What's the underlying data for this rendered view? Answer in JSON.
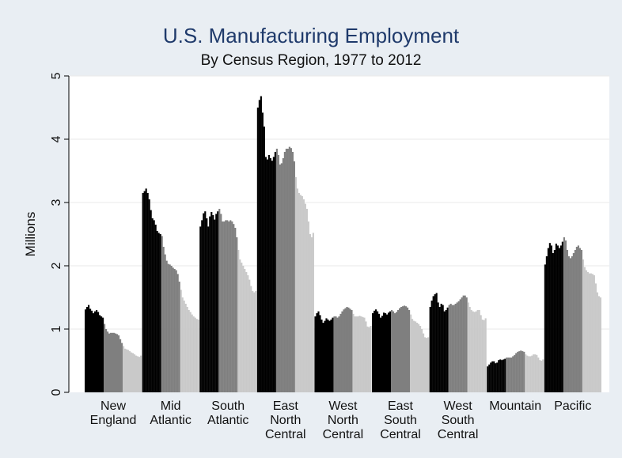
{
  "chart_data": {
    "type": "bar",
    "title": "U.S. Manufacturing Employment",
    "subtitle": "By Census Region, 1977 to 2012",
    "ylabel": "Millions",
    "ylim": [
      0,
      5
    ],
    "yticks": [
      "0",
      "1",
      "2",
      "3",
      "4",
      "5"
    ],
    "grid": true,
    "colors": [
      "#000000",
      "#7f7f7f",
      "#c9c9c9"
    ],
    "categories": [
      {
        "lines": [
          "New",
          "England"
        ]
      },
      {
        "lines": [
          "Mid",
          "Atlantic"
        ]
      },
      {
        "lines": [
          "South",
          "Atlantic"
        ]
      },
      {
        "lines": [
          "East",
          "North",
          "Central"
        ]
      },
      {
        "lines": [
          "West",
          "North",
          "Central"
        ]
      },
      {
        "lines": [
          "East",
          "South",
          "Central"
        ]
      },
      {
        "lines": [
          "West",
          "South",
          "Central"
        ]
      },
      {
        "lines": [
          "Mountain"
        ]
      },
      {
        "lines": [
          "Pacific"
        ]
      }
    ],
    "regions": [
      {
        "name": "New England",
        "values": [
          1.31,
          1.35,
          1.38,
          1.32,
          1.29,
          1.25,
          1.28,
          1.3,
          1.27,
          1.22,
          1.2,
          1.18,
          1.08,
          1.0,
          0.96,
          0.93,
          0.94,
          0.94,
          0.94,
          0.93,
          0.92,
          0.9,
          0.84,
          0.78,
          0.73,
          0.69,
          0.68,
          0.67,
          0.65,
          0.63,
          0.62,
          0.6,
          0.58,
          0.57,
          0.56,
          0.58
        ]
      },
      {
        "name": "Mid Atlantic",
        "values": [
          3.15,
          3.18,
          3.22,
          3.15,
          3.05,
          2.88,
          2.75,
          2.72,
          2.65,
          2.55,
          2.52,
          2.5,
          2.47,
          2.3,
          2.18,
          2.08,
          2.03,
          2.02,
          2.0,
          1.97,
          1.95,
          1.93,
          1.87,
          1.75,
          1.62,
          1.5,
          1.45,
          1.4,
          1.35,
          1.3,
          1.27,
          1.23,
          1.2,
          1.18,
          1.16,
          1.15
        ]
      },
      {
        "name": "South Atlantic",
        "values": [
          2.62,
          2.72,
          2.83,
          2.86,
          2.75,
          2.62,
          2.78,
          2.85,
          2.8,
          2.73,
          2.82,
          2.86,
          2.9,
          2.82,
          2.7,
          2.7,
          2.72,
          2.72,
          2.7,
          2.72,
          2.7,
          2.66,
          2.6,
          2.45,
          2.25,
          2.1,
          2.05,
          2.0,
          1.95,
          1.9,
          1.85,
          1.78,
          1.68,
          1.6,
          1.58,
          1.6
        ]
      },
      {
        "name": "East North Central",
        "values": [
          4.5,
          4.62,
          4.68,
          4.42,
          4.2,
          3.72,
          3.68,
          3.75,
          3.7,
          3.66,
          3.72,
          3.8,
          3.85,
          3.75,
          3.6,
          3.62,
          3.7,
          3.8,
          3.85,
          3.85,
          3.88,
          3.86,
          3.8,
          3.65,
          3.4,
          3.22,
          3.15,
          3.12,
          3.1,
          3.05,
          2.98,
          2.9,
          2.7,
          2.5,
          2.45,
          2.52
        ]
      },
      {
        "name": "West North Central",
        "values": [
          1.2,
          1.25,
          1.28,
          1.22,
          1.15,
          1.1,
          1.13,
          1.17,
          1.15,
          1.13,
          1.15,
          1.18,
          1.2,
          1.2,
          1.18,
          1.2,
          1.24,
          1.28,
          1.31,
          1.33,
          1.35,
          1.34,
          1.32,
          1.3,
          1.24,
          1.2,
          1.2,
          1.2,
          1.21,
          1.2,
          1.19,
          1.18,
          1.12,
          1.04,
          1.03,
          1.05
        ]
      },
      {
        "name": "East South Central",
        "values": [
          1.25,
          1.29,
          1.31,
          1.28,
          1.24,
          1.18,
          1.21,
          1.26,
          1.25,
          1.23,
          1.26,
          1.28,
          1.3,
          1.28,
          1.25,
          1.27,
          1.3,
          1.33,
          1.35,
          1.36,
          1.37,
          1.36,
          1.34,
          1.3,
          1.23,
          1.16,
          1.13,
          1.12,
          1.1,
          1.08,
          1.05,
          1.0,
          0.93,
          0.87,
          0.86,
          0.87
        ]
      },
      {
        "name": "West South Central",
        "values": [
          1.35,
          1.45,
          1.52,
          1.55,
          1.57,
          1.42,
          1.35,
          1.4,
          1.38,
          1.28,
          1.3,
          1.34,
          1.38,
          1.4,
          1.38,
          1.38,
          1.4,
          1.42,
          1.44,
          1.47,
          1.5,
          1.53,
          1.53,
          1.5,
          1.42,
          1.35,
          1.3,
          1.28,
          1.27,
          1.28,
          1.3,
          1.3,
          1.22,
          1.15,
          1.14,
          1.17
        ]
      },
      {
        "name": "Mountain",
        "values": [
          0.41,
          0.44,
          0.47,
          0.49,
          0.49,
          0.46,
          0.47,
          0.51,
          0.52,
          0.51,
          0.52,
          0.53,
          0.55,
          0.55,
          0.55,
          0.55,
          0.57,
          0.59,
          0.62,
          0.64,
          0.65,
          0.66,
          0.65,
          0.64,
          0.6,
          0.58,
          0.57,
          0.57,
          0.58,
          0.6,
          0.6,
          0.59,
          0.55,
          0.51,
          0.5,
          0.52
        ]
      },
      {
        "name": "Pacific",
        "values": [
          2.02,
          2.15,
          2.28,
          2.36,
          2.32,
          2.2,
          2.25,
          2.35,
          2.32,
          2.28,
          2.32,
          2.38,
          2.45,
          2.4,
          2.25,
          2.15,
          2.12,
          2.15,
          2.2,
          2.25,
          2.3,
          2.32,
          2.28,
          2.25,
          2.1,
          1.98,
          1.93,
          1.9,
          1.88,
          1.88,
          1.87,
          1.85,
          1.72,
          1.58,
          1.52,
          1.5
        ]
      }
    ]
  }
}
